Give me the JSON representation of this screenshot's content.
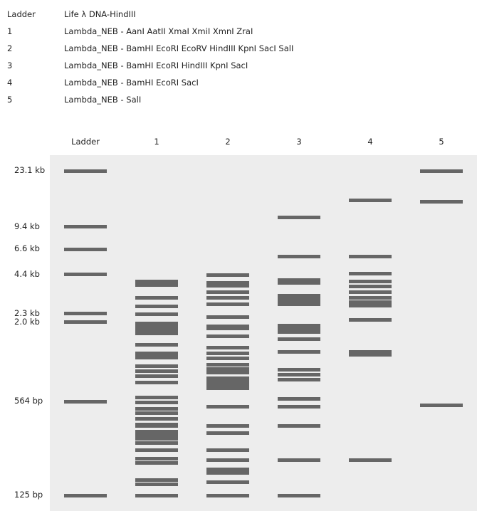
{
  "legend": [
    {
      "key": "Ladder",
      "desc": "Life λ DNA-HindIII"
    },
    {
      "key": "1",
      "desc": "Lambda_NEB - AanI AatII XmaI XmiI XmnI ZraI"
    },
    {
      "key": "2",
      "desc": "Lambda_NEB - BamHI EcoRI EcoRV HindIII KpnI SacI SalI"
    },
    {
      "key": "3",
      "desc": "Lambda_NEB - BamHI EcoRI HindIII KpnI SacI"
    },
    {
      "key": "4",
      "desc": "Lambda_NEB - BamHI EcoRI SacI"
    },
    {
      "key": "5",
      "desc": "Lambda_NEB - SalI"
    }
  ],
  "lanes": [
    "Ladder",
    "1",
    "2",
    "3",
    "4",
    "5"
  ],
  "size_labels": [
    {
      "text": "23.1 kb",
      "bp": 23130
    },
    {
      "text": "9.4 kb",
      "bp": 9416
    },
    {
      "text": "6.6 kb",
      "bp": 6557
    },
    {
      "text": "4.4 kb",
      "bp": 4361
    },
    {
      "text": "2.3 kb",
      "bp": 2322
    },
    {
      "text": "2.0 kb",
      "bp": 2027
    },
    {
      "text": "564 bp",
      "bp": 564
    },
    {
      "text": "125 bp",
      "bp": 125
    }
  ],
  "colors": {
    "band": "#666666",
    "gel": "#ededed"
  },
  "bands": [
    [
      23130,
      9416,
      6557,
      4361,
      2322,
      2027,
      564,
      125
    ],
    [
      3900,
      3700,
      3000,
      2600,
      2300,
      1980,
      1880,
      1800,
      1700,
      1400,
      1230,
      1180,
      1140,
      1000,
      920,
      850,
      770,
      600,
      560,
      500,
      470,
      430,
      390,
      380,
      350,
      330,
      310,
      290,
      260,
      225,
      210,
      160,
      150,
      125
    ],
    [
      4300,
      3800,
      3650,
      3300,
      3000,
      2700,
      2200,
      1900,
      1830,
      1620,
      1350,
      1220,
      1130,
      1020,
      950,
      900,
      820,
      780,
      740,
      700,
      520,
      380,
      340,
      260,
      220,
      190,
      180,
      155,
      125
    ],
    [
      10900,
      5800,
      4000,
      3800,
      3100,
      2950,
      2800,
      2700,
      1920,
      1830,
      1720,
      1550,
      1250,
      940,
      870,
      800,
      590,
      520,
      380,
      220,
      125
    ],
    [
      14400,
      5800,
      4400,
      3900,
      3600,
      3300,
      3000,
      2800,
      2650,
      2100,
      1250,
      1200,
      220
    ],
    [
      23130,
      14100,
      530
    ]
  ]
}
